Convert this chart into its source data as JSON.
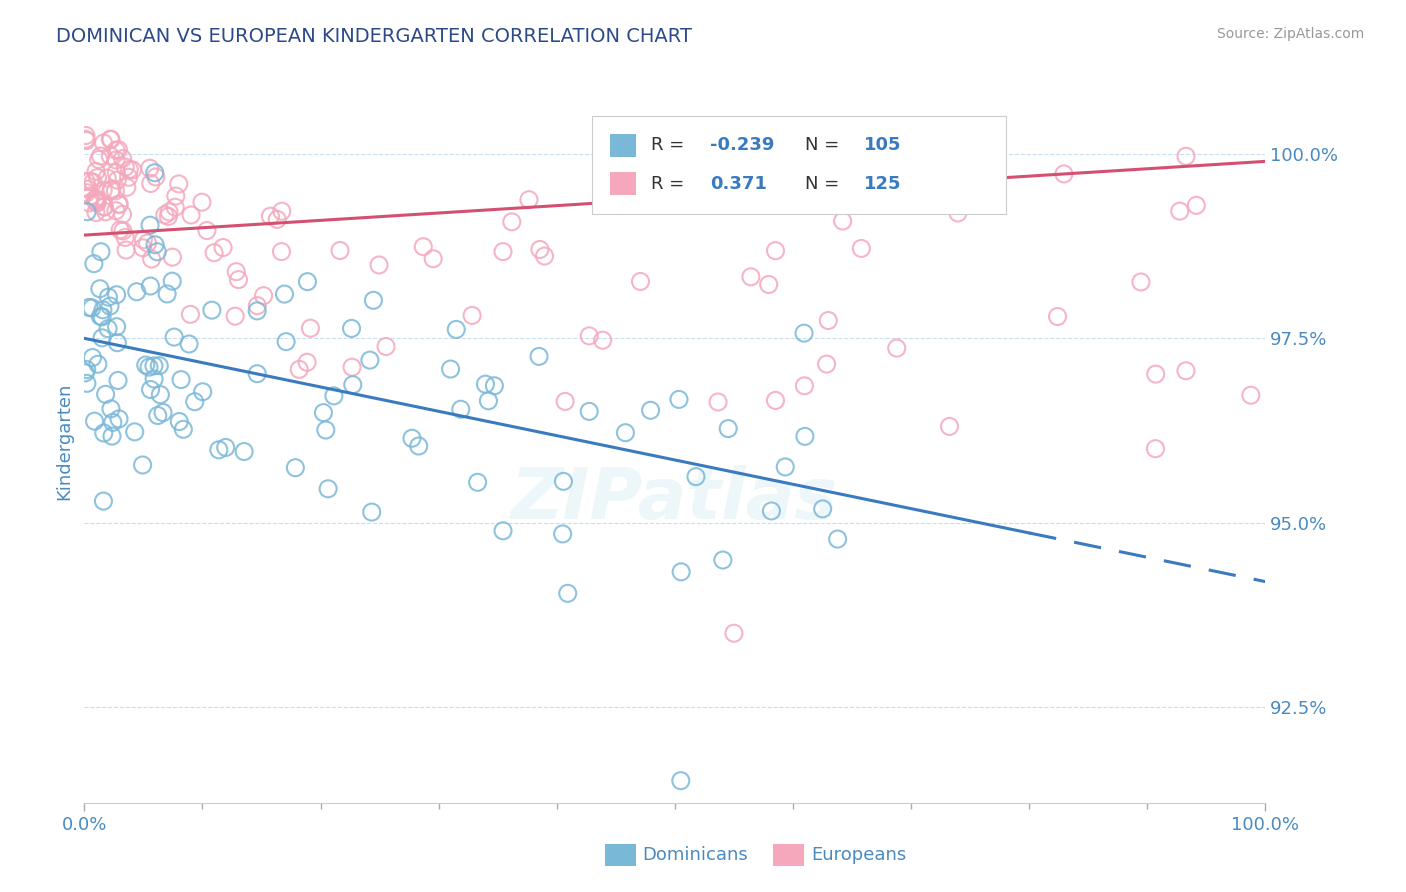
{
  "title": "DOMINICAN VS EUROPEAN KINDERGARTEN CORRELATION CHART",
  "source": "Source: ZipAtlas.com",
  "ylabel": "Kindergarten",
  "yticks": [
    92.5,
    95.0,
    97.5,
    100.0
  ],
  "ytick_labels": [
    "92.5%",
    "95.0%",
    "97.5%",
    "100.0%"
  ],
  "xmin": 0.0,
  "xmax": 100.0,
  "ymin": 91.2,
  "ymax": 101.0,
  "dominican_color": "#7ab8d8",
  "dominican_edge": "#5a9ec4",
  "european_color": "#f5a8bc",
  "european_edge": "#e07090",
  "trend_dominican_color": "#3a7abf",
  "trend_european_color": "#d45070",
  "legend_R_dominican": "-0.239",
  "legend_N_dominican": "105",
  "legend_R_european": "0.371",
  "legend_N_european": "125",
  "title_color": "#2c4a8a",
  "axis_label_color": "#4a8abf",
  "tick_color": "#4a8abf",
  "grid_color": "#c8ddf0",
  "watermark": "ZIPatlas",
  "dom_trend_intercept": 97.5,
  "dom_trend_slope": -0.033,
  "dom_solid_end": 80,
  "eur_trend_intercept": 98.9,
  "eur_trend_slope": 0.01
}
